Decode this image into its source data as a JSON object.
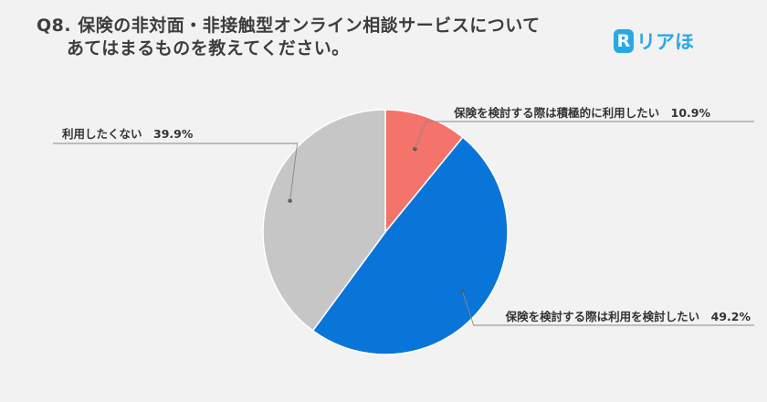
{
  "title": {
    "line1": "Q8. 保険の非対面・非接触型オンライン相談サービスについて",
    "line2": "あてはまるものを教えてください。"
  },
  "logo": {
    "mark": "R",
    "text": "リアほ"
  },
  "chart_data": {
    "type": "pie",
    "slices": [
      {
        "label": "保険を検討する際は積極的に利用したい",
        "value": 10.9,
        "display": "10.9%",
        "color": "#f4736b"
      },
      {
        "label": "保険を検討する際は利用を検討したい",
        "value": 49.2,
        "display": "49.2%",
        "color": "#0a75d8"
      },
      {
        "label": "利用したくない",
        "value": 39.9,
        "display": "39.9%",
        "color": "#c6c6c6"
      }
    ],
    "start_angle_deg": 0,
    "direction": "clockwise",
    "legend": "none",
    "labels_position": "outside-with-leader-lines"
  }
}
